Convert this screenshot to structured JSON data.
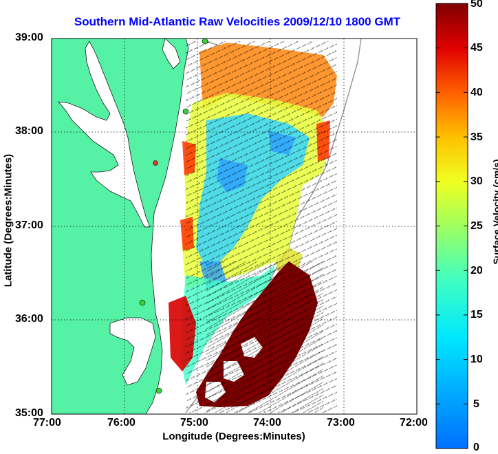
{
  "title": "Southern Mid-Atlantic Raw Velocities 2009/12/10 1800 GMT",
  "xlabel": "Longitude (Degrees:Minutes)",
  "ylabel": "Latitude (Degrees:Minutes)",
  "colorbar_label": "Surface Velocity (cm/s)",
  "x_ticks": [
    "77:00",
    "76:00",
    "75:00",
    "74:00",
    "73:00",
    "72:00"
  ],
  "y_ticks": [
    "39:00",
    "38:00",
    "37:00",
    "36:00",
    "35:00"
  ],
  "colorbar_ticks": [
    "50",
    "45",
    "40",
    "35",
    "30",
    "25",
    "20",
    "15",
    "10",
    "5",
    "0"
  ],
  "colors": {
    "land": "#55f2a6",
    "title": "#0000ff",
    "station": "#39d039",
    "station_alert": "#e03a2a"
  },
  "map": {
    "lon_range": [
      -77,
      -72
    ],
    "lat_range": [
      35,
      39
    ],
    "colorbar_range": [
      0,
      50
    ]
  }
}
